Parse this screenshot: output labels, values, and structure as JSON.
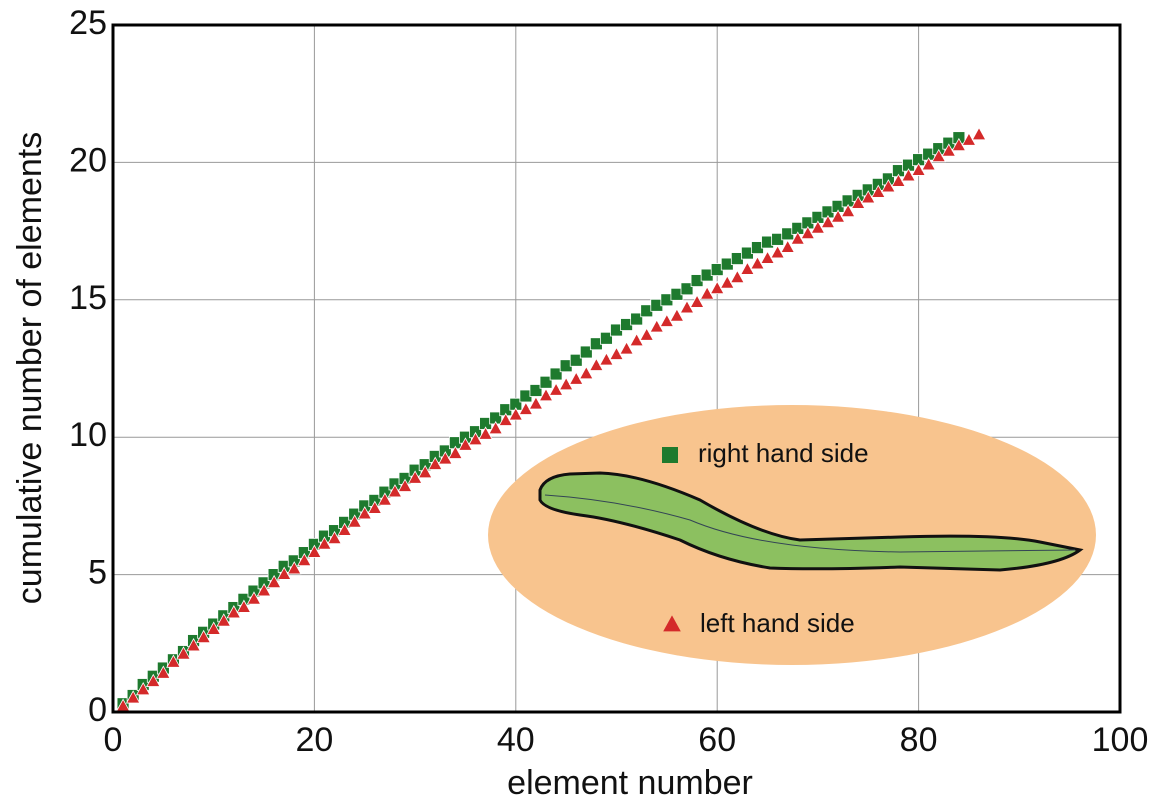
{
  "chart_data": {
    "type": "scatter",
    "xlabel": "element number",
    "ylabel": "cumulative number of elements",
    "xlim": [
      0,
      100
    ],
    "ylim": [
      0,
      25
    ],
    "xticks": [
      0,
      20,
      40,
      60,
      80,
      100
    ],
    "yticks": [
      0,
      5,
      10,
      15,
      20,
      25
    ],
    "grid": true,
    "series": [
      {
        "name": "right hand side",
        "color": "#1e7a2e",
        "marker": "square",
        "x": [
          1,
          2,
          3,
          4,
          5,
          6,
          7,
          8,
          9,
          10,
          11,
          12,
          13,
          14,
          15,
          16,
          17,
          18,
          19,
          20,
          21,
          22,
          23,
          24,
          25,
          26,
          27,
          28,
          29,
          30,
          31,
          32,
          33,
          34,
          35,
          36,
          37,
          38,
          39,
          40,
          41,
          42,
          43,
          44,
          45,
          46,
          47,
          48,
          49,
          50,
          51,
          52,
          53,
          54,
          55,
          56,
          57,
          58,
          59,
          60,
          61,
          62,
          63,
          64,
          65,
          66,
          67,
          68,
          69,
          70,
          71,
          72,
          73,
          74,
          75,
          76,
          77,
          78,
          79,
          80,
          81,
          82,
          83,
          84
        ],
        "values": [
          0.3,
          0.6,
          1.0,
          1.3,
          1.6,
          1.9,
          2.2,
          2.6,
          2.9,
          3.2,
          3.5,
          3.8,
          4.1,
          4.4,
          4.7,
          5.0,
          5.3,
          5.5,
          5.8,
          6.1,
          6.4,
          6.6,
          6.9,
          7.2,
          7.5,
          7.7,
          8.0,
          8.3,
          8.5,
          8.8,
          9.0,
          9.3,
          9.5,
          9.8,
          10.0,
          10.2,
          10.5,
          10.7,
          11.0,
          11.2,
          11.5,
          11.7,
          12.0,
          12.3,
          12.6,
          12.8,
          13.1,
          13.4,
          13.6,
          13.9,
          14.1,
          14.3,
          14.6,
          14.8,
          15.0,
          15.2,
          15.4,
          15.7,
          15.9,
          16.1,
          16.3,
          16.5,
          16.7,
          16.9,
          17.1,
          17.2,
          17.4,
          17.6,
          17.8,
          18.0,
          18.2,
          18.4,
          18.6,
          18.8,
          19.0,
          19.2,
          19.4,
          19.7,
          19.9,
          20.1,
          20.3,
          20.5,
          20.7,
          20.9
        ]
      },
      {
        "name": "left hand side",
        "color": "#d42a2a",
        "marker": "triangle",
        "x": [
          1,
          2,
          3,
          4,
          5,
          6,
          7,
          8,
          9,
          10,
          11,
          12,
          13,
          14,
          15,
          16,
          17,
          18,
          19,
          20,
          21,
          22,
          23,
          24,
          25,
          26,
          27,
          28,
          29,
          30,
          31,
          32,
          33,
          34,
          35,
          36,
          37,
          38,
          39,
          40,
          41,
          42,
          43,
          44,
          45,
          46,
          47,
          48,
          49,
          50,
          51,
          52,
          53,
          54,
          55,
          56,
          57,
          58,
          59,
          60,
          61,
          62,
          63,
          64,
          65,
          66,
          67,
          68,
          69,
          70,
          71,
          72,
          73,
          74,
          75,
          76,
          77,
          78,
          79,
          80,
          81,
          82,
          83,
          84,
          85,
          86
        ],
        "values": [
          0.2,
          0.5,
          0.8,
          1.1,
          1.4,
          1.8,
          2.1,
          2.4,
          2.7,
          3.0,
          3.3,
          3.6,
          3.8,
          4.1,
          4.4,
          4.7,
          5.0,
          5.2,
          5.5,
          5.8,
          6.1,
          6.3,
          6.6,
          6.9,
          7.2,
          7.4,
          7.7,
          8.0,
          8.2,
          8.5,
          8.7,
          9.0,
          9.2,
          9.4,
          9.7,
          9.9,
          10.1,
          10.3,
          10.6,
          10.8,
          11.0,
          11.2,
          11.5,
          11.7,
          11.9,
          12.1,
          12.3,
          12.6,
          12.8,
          13.0,
          13.2,
          13.5,
          13.7,
          14.0,
          14.2,
          14.4,
          14.7,
          14.9,
          15.2,
          15.4,
          15.6,
          15.8,
          16.1,
          16.3,
          16.5,
          16.7,
          16.9,
          17.2,
          17.4,
          17.6,
          17.8,
          18.0,
          18.2,
          18.5,
          18.7,
          18.9,
          19.1,
          19.3,
          19.5,
          19.7,
          19.9,
          20.2,
          20.4,
          20.6,
          20.8,
          21.0
        ]
      }
    ]
  }
}
